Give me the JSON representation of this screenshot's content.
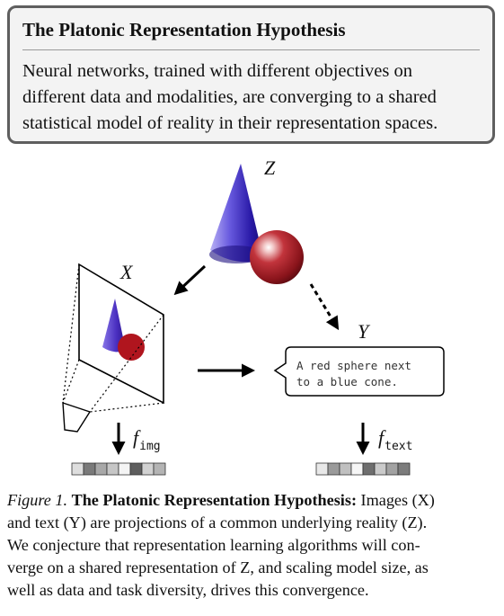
{
  "callout": {
    "title": "The Platonic Representation Hypothesis",
    "body_lines": [
      "Neural networks, trained with different objectives on",
      "different data and modalities, are converging to a shared",
      "statistical model of reality in their representation spaces."
    ]
  },
  "figure": {
    "labels": {
      "z": "Z",
      "x": "X",
      "y": "Y"
    },
    "bubble_lines": [
      "A red sphere next",
      "to a blue cone."
    ],
    "f_img": {
      "symbol": "f",
      "sub": "img"
    },
    "f_text": {
      "symbol": "f",
      "sub": "text"
    },
    "colors": {
      "cone": "#2a1aa8",
      "sphere": "#a11a22"
    },
    "embedding_img": [
      "#dedede",
      "#7a7a7a",
      "#a8a8a8",
      "#c6c6c6",
      "#f4f4f4",
      "#5e5e5e",
      "#d2d2d2",
      "#b4b4b4"
    ],
    "embedding_text": [
      "#e8e8e8",
      "#9a9a9a",
      "#c0c0c0",
      "#f6f6f6",
      "#6e6e6e",
      "#cacaca",
      "#a2a2a2",
      "#7c7c7c"
    ]
  },
  "caption": {
    "label": "Figure 1.",
    "title": "The Platonic Representation Hypothesis:",
    "line1_rest": "Images (X)",
    "line2": "and text (Y) are projections of a common underlying reality (Z).",
    "line3": "We conjecture that representation learning algorithms will con-",
    "line4": "verge on a shared representation of Z, and scaling model size, as",
    "line5": "well as data and task diversity, drives this convergence."
  }
}
